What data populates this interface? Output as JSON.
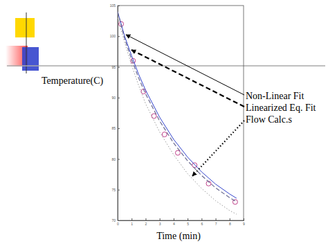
{
  "chart_data": {
    "type": "line",
    "xlabel": "Time (min)",
    "ylabel": "Temperature(C)",
    "xlim": [
      0,
      9
    ],
    "xticks": [
      0,
      1,
      2,
      3,
      4,
      5,
      6,
      7,
      8,
      9
    ],
    "ylim": [
      70,
      105
    ],
    "yticks": [
      70,
      75,
      80,
      85,
      90,
      95,
      100,
      105
    ],
    "grid": false,
    "annotations": [
      "Non-Linear Fit",
      "Linearized Eq. Fit",
      "Flow Calc.s"
    ],
    "series": [
      {
        "type": "scatter",
        "color": "#c0408a",
        "marker": "circle",
        "x": [
          0.25,
          1.1,
          1.85,
          2.6,
          3.35,
          4.3,
          5.5,
          6.5,
          8.4
        ],
        "values": [
          102.0,
          96.0,
          91.0,
          87.0,
          84.0,
          81.0,
          79.0,
          76.0,
          73.0
        ]
      },
      {
        "type": "line",
        "color": "#3344cc",
        "line_style": "solid",
        "x": [
          0,
          0.5,
          1,
          1.5,
          2,
          3,
          4,
          5,
          6,
          7,
          8,
          8.5
        ],
        "values": [
          104.0,
          100.0,
          96.8,
          93.8,
          91.2,
          86.8,
          83.2,
          80.3,
          77.9,
          75.9,
          74.3,
          73.6
        ]
      },
      {
        "type": "line",
        "color": "#6a6a90",
        "line_style": "dashed",
        "x": [
          0,
          0.5,
          1,
          1.5,
          2,
          3,
          4,
          5,
          6,
          7,
          8,
          8.5
        ],
        "values": [
          104.0,
          99.6,
          96.2,
          93.2,
          90.6,
          86.2,
          82.6,
          79.7,
          77.3,
          75.3,
          73.7,
          73.0
        ]
      },
      {
        "type": "line",
        "color": "#999999",
        "line_style": "dotted",
        "x": [
          0,
          0.5,
          1,
          1.5,
          2,
          3,
          4,
          5,
          6,
          7,
          8,
          8.5
        ],
        "values": [
          103.0,
          99.0,
          95.3,
          92.0,
          89.0,
          84.4,
          80.7,
          77.6,
          75.2,
          73.2,
          71.6,
          71.0
        ]
      }
    ]
  }
}
